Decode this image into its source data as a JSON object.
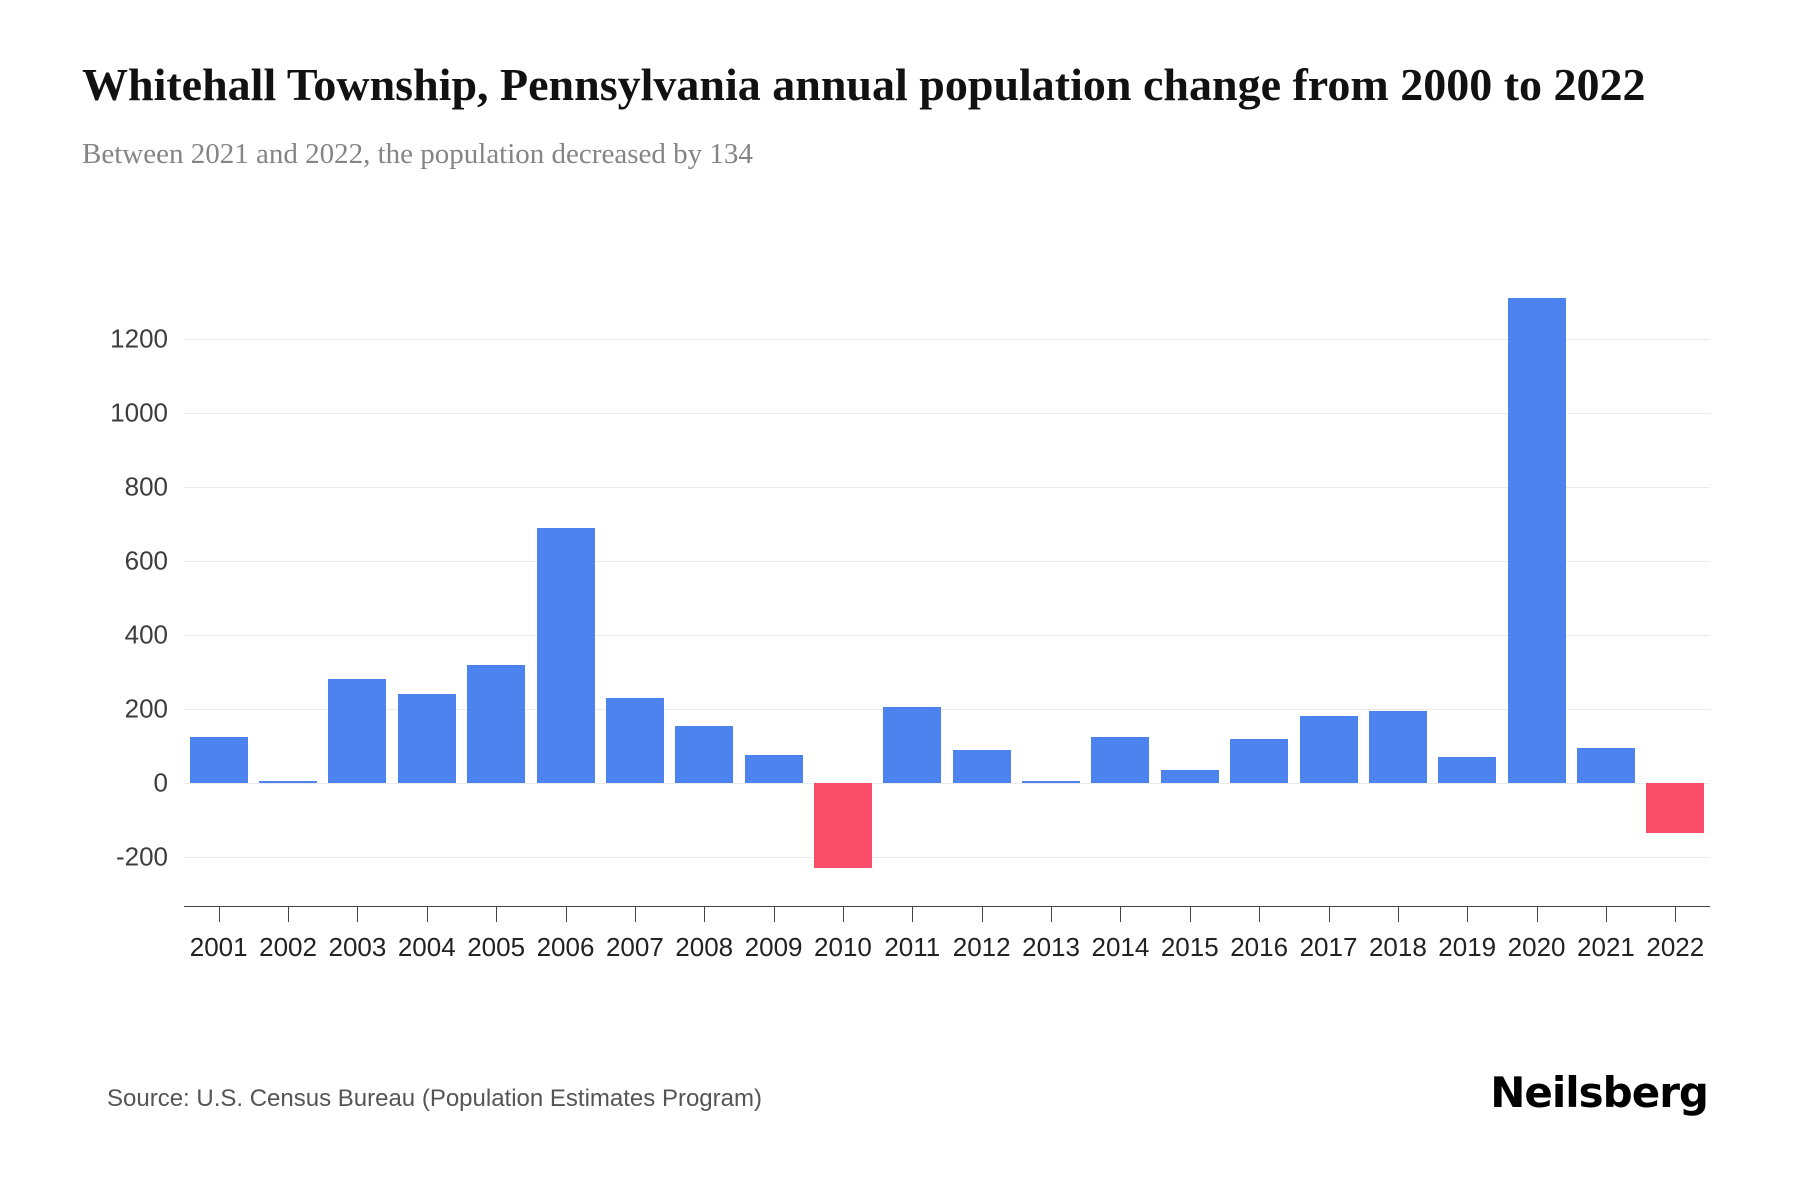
{
  "page": {
    "title": "Whitehall Township, Pennsylvania annual population change from 2000 to 2022",
    "subtitle": "Between 2021 and 2022, the population decreased by 134",
    "source": "Source: U.S. Census Bureau (Population Estimates Program)",
    "brand": "Neilsberg"
  },
  "chart_data": {
    "type": "bar",
    "title": "Whitehall Township, Pennsylvania annual population change from 2000 to 2022",
    "subtitle": "Between 2021 and 2022, the population decreased by 134",
    "categories": [
      "2001",
      "2002",
      "2003",
      "2004",
      "2005",
      "2006",
      "2007",
      "2008",
      "2009",
      "2010",
      "2011",
      "2012",
      "2013",
      "2014",
      "2015",
      "2016",
      "2017",
      "2018",
      "2019",
      "2020",
      "2021",
      "2022"
    ],
    "values": [
      125,
      5,
      280,
      240,
      320,
      690,
      230,
      155,
      75,
      -230,
      205,
      90,
      3,
      125,
      35,
      120,
      180,
      195,
      70,
      1310,
      95,
      -134
    ],
    "xlabel": "",
    "ylabel": "",
    "yticks": [
      -200,
      0,
      200,
      400,
      600,
      800,
      1000,
      1200
    ],
    "ylim": [
      -280,
      1360
    ],
    "grid": true,
    "legend": "none",
    "positive_color": "#4D83EF",
    "negative_color": "#F94D6A"
  }
}
